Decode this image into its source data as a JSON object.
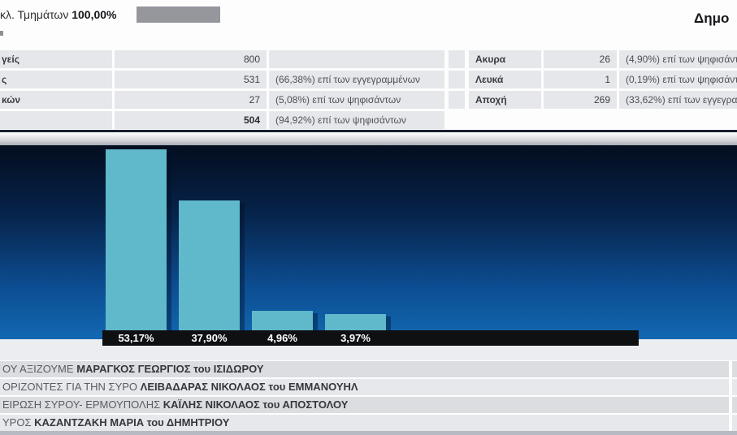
{
  "header": {
    "integration_label": "κλ. Τμημάτων",
    "integration_value": "100,00%",
    "title_fragment": "Δημο"
  },
  "stats": {
    "left_rows": [
      {
        "label": "γείς",
        "value": "800",
        "note": ""
      },
      {
        "label": "ς",
        "value": "531",
        "note": "(66,38%) επί των εγγεγραμμένων"
      },
      {
        "label": "κών",
        "value": "27",
        "note": "(5,08%) επί των ψηφισάντων"
      },
      {
        "label": "",
        "value": "504",
        "note": "(94,92%) επί των ψηφισάντων"
      }
    ],
    "right_rows": [
      {
        "label": "Ακυρα",
        "value": "26",
        "note": "(4,90%) επί των ψηφισάντων"
      },
      {
        "label": "Λευκά",
        "value": "1",
        "note": "(0,19%) επί των ψηφισάντων"
      },
      {
        "label": "Αποχή",
        "value": "269",
        "note": "(33,62%) επί των εγγεγραμμένων"
      }
    ]
  },
  "chart_data": {
    "type": "bar",
    "categories": [
      "ΜΑΡΑΓΚΟΣ ΓΕΩΡΓΙΟΣ του ΙΣΙΔΩΡΟΥ",
      "ΛΕΙΒΑΔΑΡΑΣ ΝΙΚΟΛΑΟΣ του ΕΜΜΑΝΟΥΗΛ",
      "ΚΑΪΛΗΣ ΝΙΚΟΛΑΟΣ του ΑΠΟΣΤΟΛΟΥ",
      "ΚΑΖΑΝΤΖΑΚΗ ΜΑΡΙΑ του ΔΗΜΗΤΡΙΟΥ"
    ],
    "values": [
      53.17,
      37.9,
      4.96,
      3.97
    ],
    "value_labels": [
      "53,17%",
      "37,90%",
      "4,96%",
      "3,97%"
    ],
    "title": "",
    "xlabel": "",
    "ylabel": "",
    "ylim": [
      0,
      56
    ],
    "grid": false,
    "legend": false,
    "bar_color": "#5fb9cb",
    "band_color": "#0e1012",
    "background_gradient": [
      "#030d1f",
      "#06234a",
      "#0c4c90",
      "#1268b2"
    ]
  },
  "candidates": [
    {
      "party": "ΟΥ ΑΞΙΖΟΥΜΕ",
      "name": "ΜΑΡΑΓΚΟΣ ΓΕΩΡΓΙΟΣ του ΙΣΙΔΩΡΟΥ"
    },
    {
      "party": "ΟΡΙΖΟΝΤΕΣ ΓΙΑ ΤΗΝ ΣΥΡΟ",
      "name": "ΛΕΙΒΑΔΑΡΑΣ ΝΙΚΟΛΑΟΣ του ΕΜΜΑΝΟΥΗΛ"
    },
    {
      "party": "ΕΙΡΩΣΗ ΣΥΡΟΥ- ΕΡΜΟΥΠΟΛΗΣ",
      "name": "ΚΑΪΛΗΣ ΝΙΚΟΛΑΟΣ του ΑΠΟΣΤΟΛΟΥ"
    },
    {
      "party": "ΥΡΟΣ",
      "name": "ΚΑΖΑΝΤΖΑΚΗ ΜΑΡΙΑ του ΔΗΜΗΤΡΙΟΥ"
    }
  ],
  "colors": {
    "accent_bar": "#5fb9cb",
    "progress_fill": "#95979d",
    "table_cell": "#e6e7ea",
    "band": "#0e1012"
  }
}
